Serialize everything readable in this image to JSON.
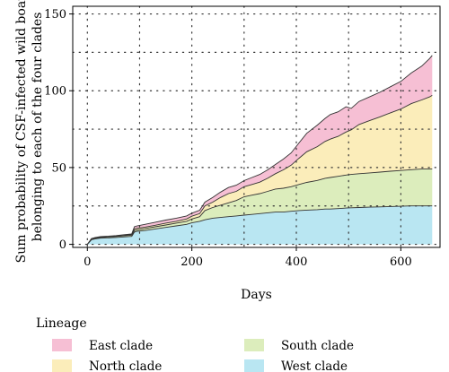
{
  "chart_data": {
    "type": "area",
    "stacked": true,
    "title": "",
    "xlabel": "Days",
    "ylabel_lines": [
      "Sum probability of CSF-infected wild boar",
      "belonging to each of the four clades"
    ],
    "xlim": [
      -28,
      675
    ],
    "ylim": [
      -2,
      155
    ],
    "xticks": [
      0,
      200,
      400,
      600
    ],
    "yticks": [
      0,
      50,
      100,
      150
    ],
    "grid": "dotted",
    "legend": {
      "title": "Lineage",
      "position": "bottom"
    },
    "x": [
      0,
      8,
      15,
      25,
      40,
      55,
      70,
      85,
      90,
      95,
      110,
      130,
      150,
      170,
      190,
      200,
      215,
      225,
      240,
      255,
      270,
      285,
      300,
      315,
      330,
      345,
      360,
      375,
      390,
      405,
      420,
      440,
      455,
      465,
      480,
      495,
      505,
      520,
      540,
      560,
      580,
      600,
      620,
      640,
      655,
      660
    ],
    "series": [
      {
        "name": "West clade",
        "color": "#b9e6f2",
        "values": [
          0,
          3,
          3.5,
          4,
          4.2,
          4.5,
          4.8,
          5.2,
          8,
          8.5,
          9,
          10,
          11,
          12,
          13,
          14,
          15,
          16,
          17,
          17.5,
          18,
          18.5,
          19,
          19.5,
          20,
          20.5,
          21,
          21,
          21.5,
          22,
          22.3,
          22.6,
          23,
          23,
          23.3,
          23.6,
          23.8,
          24,
          24.2,
          24.4,
          24.6,
          24.8,
          25,
          25,
          25,
          25
        ]
      },
      {
        "name": "South clade",
        "color": "#dcedbc",
        "values": [
          0,
          0.5,
          0.5,
          0.5,
          0.6,
          0.6,
          0.7,
          0.8,
          1,
          1,
          1.2,
          1.4,
          1.6,
          1.8,
          2,
          2.5,
          3,
          6,
          7,
          8,
          9,
          10,
          12,
          12.5,
          13,
          14,
          15,
          15.5,
          16,
          17,
          18,
          19,
          20,
          20.5,
          21,
          21.5,
          21.7,
          22,
          22.3,
          22.6,
          23,
          23.3,
          23.6,
          24,
          24,
          24
        ]
      },
      {
        "name": "North clade",
        "color": "#fbedba",
        "values": [
          0,
          0.2,
          0.3,
          0.3,
          0.3,
          0.4,
          0.5,
          0.5,
          1,
          1,
          1,
          1,
          1.2,
          1.2,
          1.5,
          1.8,
          2,
          3,
          3.5,
          5,
          6,
          6,
          6.5,
          7,
          7.5,
          8.5,
          10,
          12,
          14,
          17,
          20,
          22,
          24,
          25,
          26,
          28,
          29,
          32,
          34,
          36,
          38,
          40,
          43,
          45,
          47,
          48
        ]
      },
      {
        "name": "East clade",
        "color": "#f6bfd4",
        "values": [
          0,
          0.1,
          0.1,
          0.2,
          0.2,
          0.2,
          0.3,
          0.3,
          1.5,
          1.5,
          1.8,
          2,
          2,
          2,
          2,
          2,
          2.2,
          2.5,
          3,
          3.5,
          4,
          4,
          4,
          4.5,
          5,
          5.5,
          6,
          7,
          8,
          10,
          12,
          14,
          15,
          16,
          16,
          16.5,
          14,
          15,
          15.5,
          16,
          17,
          18,
          20,
          22,
          25,
          26
        ]
      }
    ]
  }
}
